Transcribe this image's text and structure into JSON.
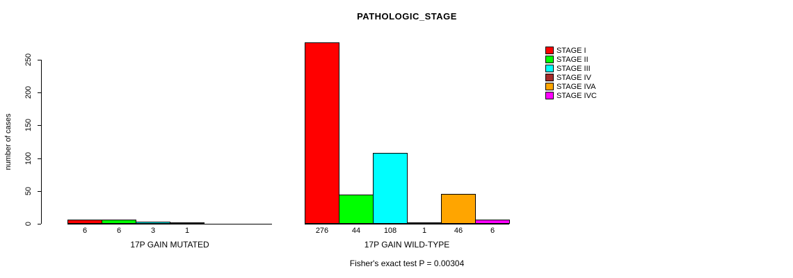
{
  "title": "PATHOLOGIC_STAGE",
  "ylabel": "number of cases",
  "footer": "Fisher's exact test P = 0.00304",
  "legend": [
    {
      "label": "STAGE I",
      "color": "#FF0000"
    },
    {
      "label": "STAGE II",
      "color": "#00FF00"
    },
    {
      "label": "STAGE III",
      "color": "#00FFFF"
    },
    {
      "label": "STAGE IV",
      "color": "#A52A2A"
    },
    {
      "label": "STAGE IVA",
      "color": "#FFA500"
    },
    {
      "label": "STAGE IVC",
      "color": "#FF00FF"
    }
  ],
  "chart_data": {
    "type": "bar",
    "title": "PATHOLOGIC_STAGE",
    "ylabel": "number of cases",
    "ylim": [
      0,
      250
    ],
    "yticks": [
      0,
      50,
      100,
      150,
      200,
      250
    ],
    "grid": false,
    "legend_position": "right",
    "categories": [
      "STAGE I",
      "STAGE II",
      "STAGE III",
      "STAGE IV",
      "STAGE IVA",
      "STAGE IVC"
    ],
    "groups": [
      {
        "label": "17P GAIN MUTATED",
        "bars": [
          {
            "stage": "STAGE I",
            "value": 6,
            "color": "#FF0000"
          },
          {
            "stage": "STAGE II",
            "value": 6,
            "color": "#00FF00"
          },
          {
            "stage": "STAGE III",
            "value": 3,
            "color": "#00FFFF"
          },
          {
            "stage": "STAGE IV",
            "value": 1,
            "color": "#A52A2A"
          }
        ]
      },
      {
        "label": "17P GAIN WILD-TYPE",
        "bars": [
          {
            "stage": "STAGE I",
            "value": 276,
            "color": "#FF0000"
          },
          {
            "stage": "STAGE II",
            "value": 44,
            "color": "#00FF00"
          },
          {
            "stage": "STAGE III",
            "value": 108,
            "color": "#00FFFF"
          },
          {
            "stage": "STAGE IV",
            "value": 1,
            "color": "#A52A2A"
          },
          {
            "stage": "STAGE IVA",
            "value": 46,
            "color": "#FFA500"
          },
          {
            "stage": "STAGE IVC",
            "value": 6,
            "color": "#FF00FF"
          }
        ]
      }
    ],
    "annotation": "Fisher's exact test P = 0.00304"
  }
}
